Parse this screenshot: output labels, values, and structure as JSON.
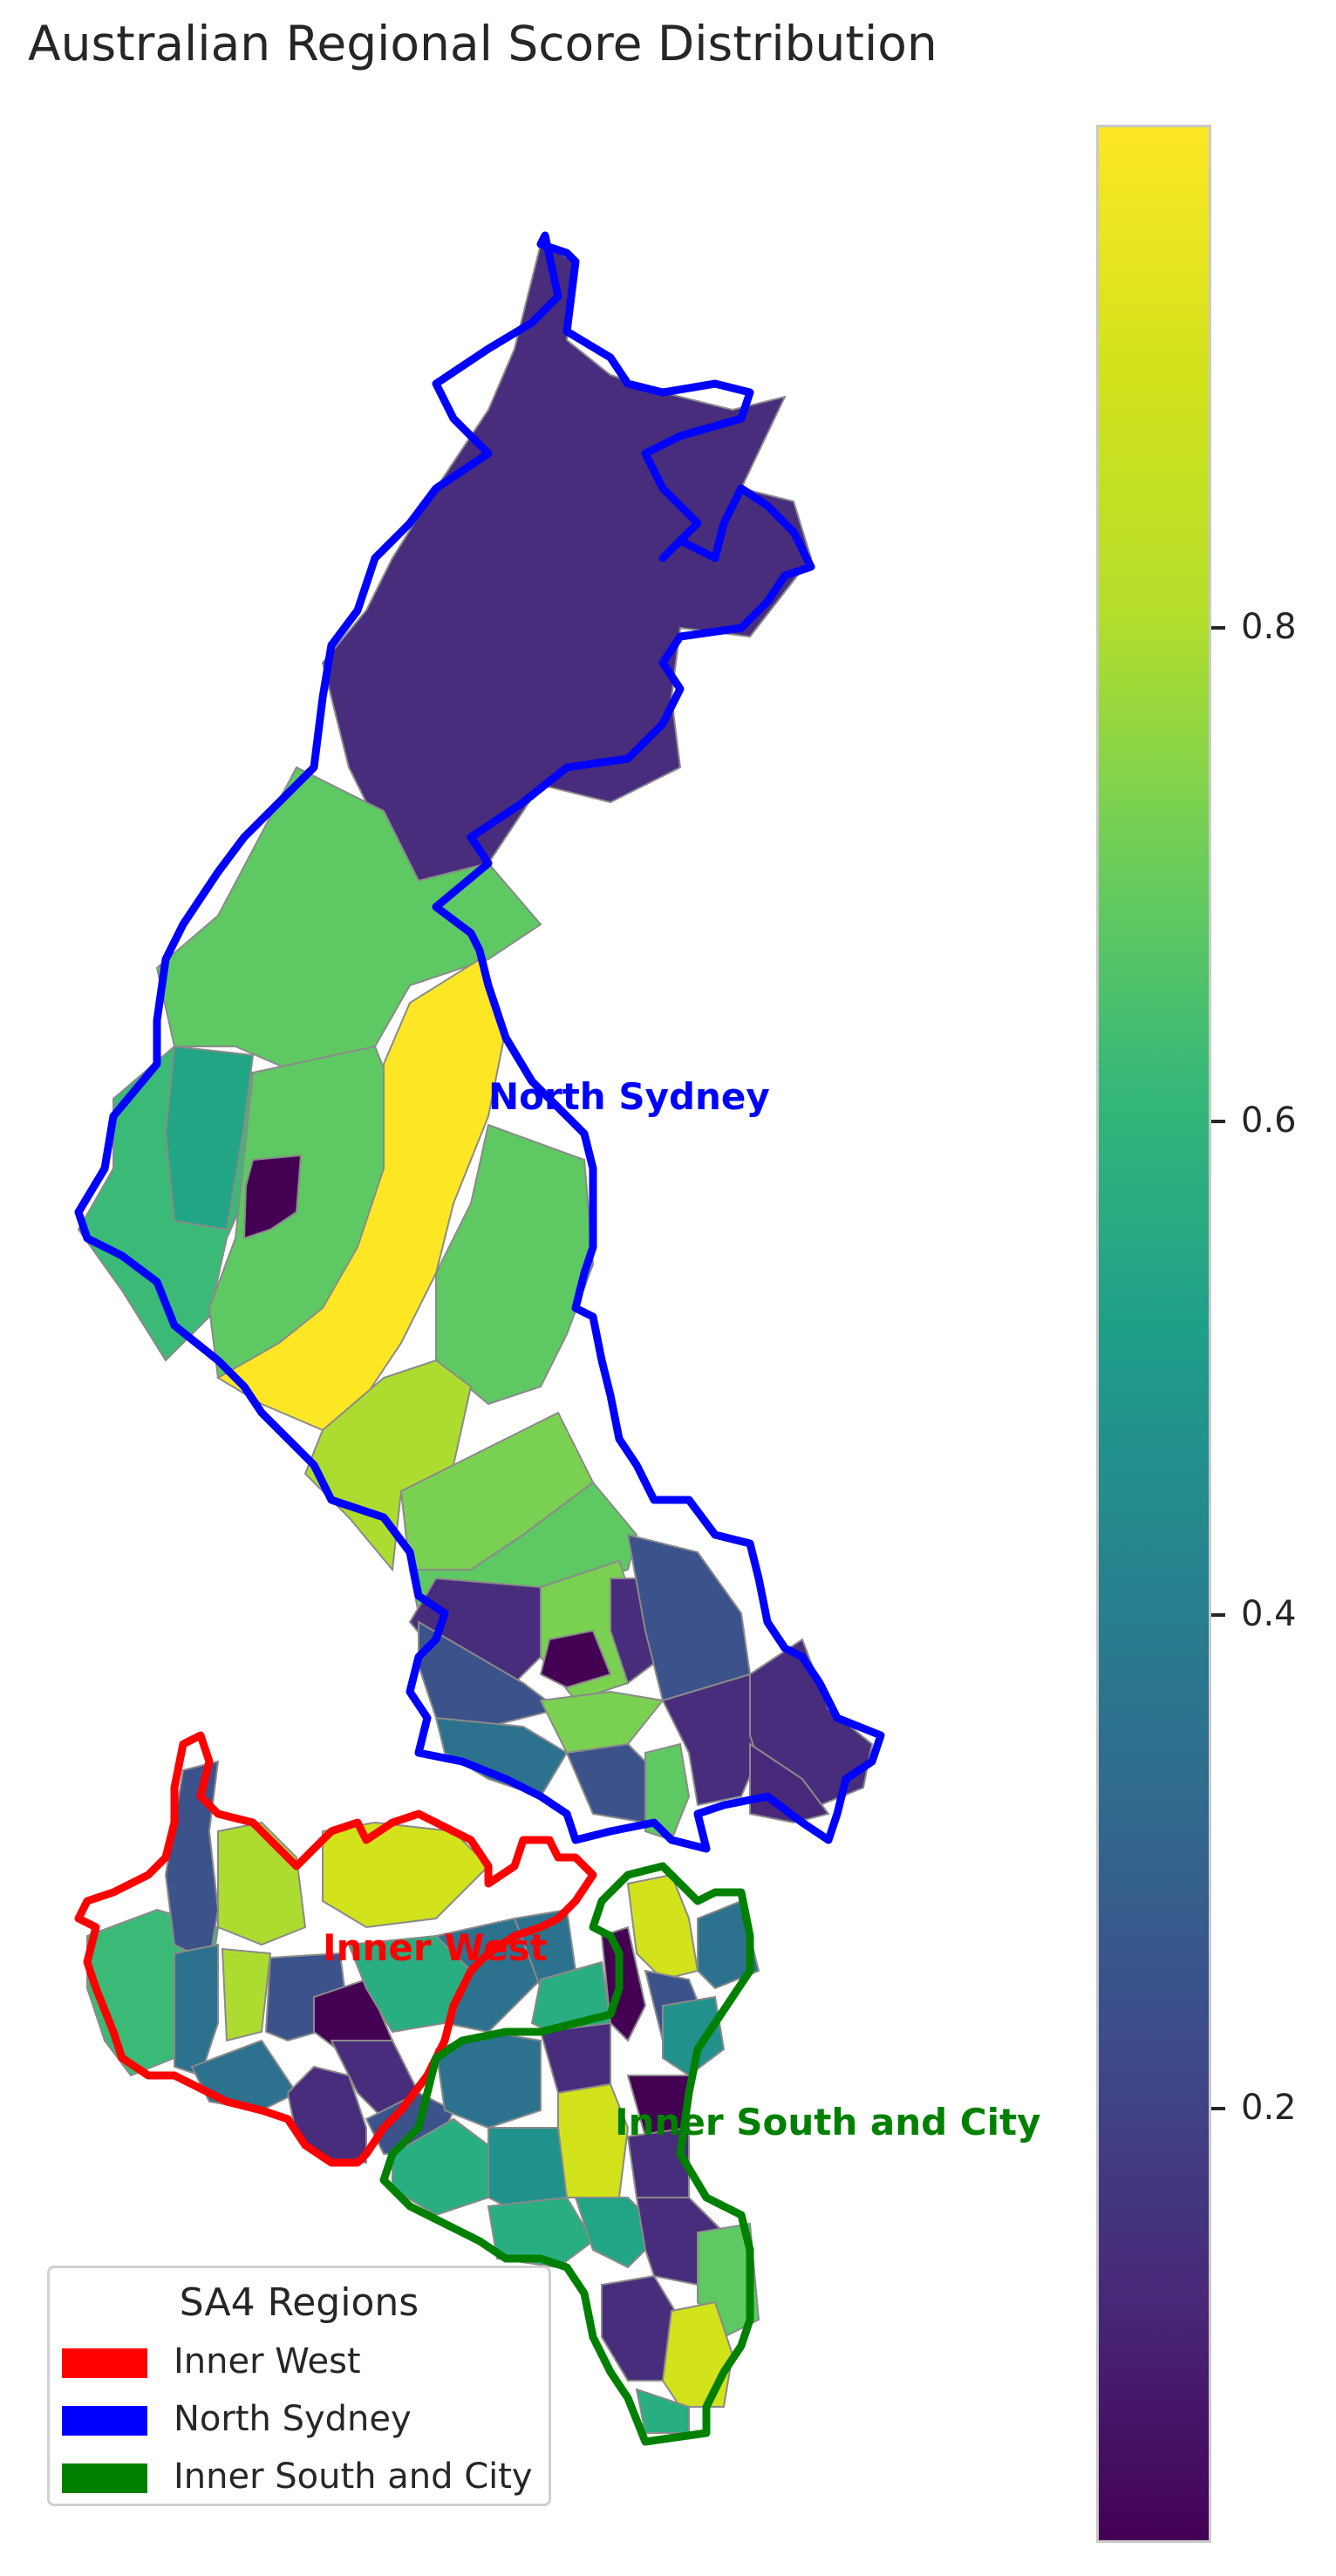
{
  "title": "Australian Regional Score Distribution",
  "regions": [
    {
      "key": "north",
      "name": "North Sydney",
      "color": "#0000ff"
    },
    {
      "key": "west",
      "name": "Inner West",
      "color": "#ff0000"
    },
    {
      "key": "south",
      "name": "Inner South and City",
      "color": "#008000"
    }
  ],
  "legend": {
    "title": "SA4 Regions",
    "items": [
      "Inner West",
      "North Sydney",
      "Inner South and City"
    ],
    "colors": [
      "#ff0000",
      "#0000ff",
      "#008000"
    ]
  },
  "colorbar": {
    "colormap": "viridis",
    "range": [
      0.02,
      0.98
    ],
    "ticks": [
      "0.2",
      "0.4",
      "0.6",
      "0.8"
    ]
  },
  "palette": {
    "dark_purple": "#440154",
    "purple": "#472d7b",
    "blue": "#3b528b",
    "teal": "#2c728e",
    "teal_green": "#21918c",
    "green": "#28ae80",
    "light_green": "#5ec962",
    "yellow_green": "#addc30",
    "yellow": "#fde725"
  }
}
